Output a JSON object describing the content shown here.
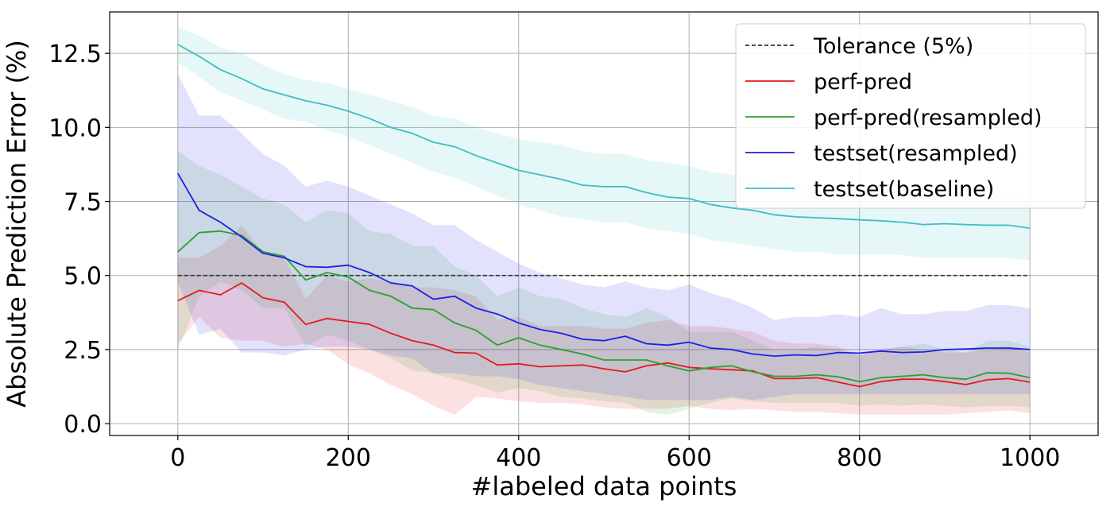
{
  "chart_data": {
    "type": "line",
    "title": "",
    "xlabel": "#labeled data points",
    "ylabel": "Absolute Prediction Error (%)",
    "xlim": [
      -80,
      1080
    ],
    "ylim": [
      -0.4,
      13.9
    ],
    "xticks": [
      0,
      200,
      400,
      600,
      800,
      1000
    ],
    "xtick_labels": [
      "0",
      "200",
      "400",
      "600",
      "800",
      "1000"
    ],
    "yticks": [
      0.0,
      2.5,
      5.0,
      7.5,
      10.0,
      12.5
    ],
    "ytick_labels": [
      "0.0",
      "2.5",
      "5.0",
      "7.5",
      "10.0",
      "12.5"
    ],
    "grid": true,
    "legend_position": "top-right",
    "x": [
      0,
      25,
      50,
      75,
      100,
      125,
      150,
      175,
      200,
      225,
      250,
      275,
      300,
      325,
      350,
      375,
      400,
      425,
      450,
      475,
      500,
      525,
      550,
      575,
      600,
      625,
      650,
      675,
      700,
      725,
      750,
      775,
      800,
      825,
      850,
      875,
      900,
      925,
      950,
      975,
      1000
    ],
    "reference_line": {
      "name": "Tolerance (5%)",
      "value": 5.0,
      "color": "#333333"
    },
    "series": [
      {
        "name": "perf-pred",
        "color": "#e41a1c",
        "values": [
          4.15,
          4.5,
          4.35,
          4.75,
          4.25,
          4.1,
          3.35,
          3.55,
          3.45,
          3.35,
          3.05,
          2.8,
          2.65,
          2.4,
          2.38,
          1.98,
          2.02,
          1.92,
          1.95,
          1.98,
          1.85,
          1.75,
          1.95,
          2.05,
          1.9,
          1.85,
          1.82,
          1.78,
          1.52,
          1.52,
          1.55,
          1.4,
          1.25,
          1.42,
          1.5,
          1.5,
          1.42,
          1.32,
          1.48,
          1.52,
          1.4
        ],
        "lower": [
          2.7,
          3.6,
          2.9,
          2.8,
          2.8,
          2.6,
          2.7,
          2.5,
          2.0,
          1.7,
          1.3,
          1.0,
          0.6,
          0.3,
          0.9,
          0.85,
          0.75,
          0.7,
          0.7,
          0.65,
          0.55,
          0.5,
          0.5,
          0.5,
          0.6,
          0.5,
          0.45,
          0.5,
          0.45,
          0.4,
          0.4,
          0.35,
          0.3,
          0.3,
          0.3,
          0.3,
          0.3,
          0.35,
          0.4,
          0.45,
          0.35
        ],
        "upper": [
          5.6,
          5.6,
          6.0,
          6.7,
          5.7,
          5.6,
          4.2,
          5.0,
          4.8,
          4.9,
          4.8,
          4.6,
          4.6,
          4.5,
          4.3,
          3.5,
          3.6,
          3.3,
          3.3,
          3.3,
          3.2,
          3.2,
          3.4,
          3.5,
          3.3,
          3.3,
          3.2,
          3.1,
          2.8,
          2.7,
          2.7,
          2.6,
          2.3,
          2.5,
          2.6,
          2.5,
          2.4,
          2.4,
          2.5,
          2.6,
          2.4
        ]
      },
      {
        "name": "perf-pred(resampled)",
        "color": "#2ca02c",
        "values": [
          5.8,
          6.45,
          6.5,
          6.35,
          5.8,
          5.65,
          4.85,
          5.1,
          4.95,
          4.5,
          4.3,
          3.9,
          3.85,
          3.4,
          3.15,
          2.65,
          2.9,
          2.65,
          2.5,
          2.35,
          2.15,
          2.15,
          2.15,
          1.95,
          1.78,
          1.9,
          1.95,
          1.75,
          1.6,
          1.6,
          1.65,
          1.58,
          1.42,
          1.55,
          1.6,
          1.65,
          1.55,
          1.5,
          1.72,
          1.7,
          1.55
        ],
        "lower": [
          2.5,
          4.3,
          4.8,
          4.5,
          3.9,
          3.9,
          2.6,
          3.0,
          2.8,
          2.5,
          2.2,
          1.8,
          1.7,
          1.5,
          1.3,
          1.05,
          1.2,
          1.1,
          0.9,
          0.85,
          0.75,
          0.7,
          0.4,
          0.3,
          0.5,
          0.7,
          0.85,
          0.75,
          0.7,
          0.7,
          0.7,
          0.7,
          0.6,
          0.65,
          0.6,
          0.65,
          0.6,
          0.55,
          0.6,
          0.6,
          0.55
        ],
        "upper": [
          9.2,
          8.7,
          8.4,
          8.0,
          7.6,
          7.4,
          6.8,
          7.2,
          7.1,
          6.5,
          6.4,
          6.0,
          6.0,
          5.3,
          5.0,
          4.3,
          4.6,
          4.3,
          4.2,
          3.9,
          3.7,
          3.6,
          3.9,
          3.6,
          3.1,
          3.1,
          3.1,
          2.8,
          2.5,
          2.5,
          2.6,
          2.5,
          2.3,
          2.5,
          2.6,
          2.7,
          2.5,
          2.4,
          2.8,
          2.8,
          2.6
        ]
      },
      {
        "name": "testset(resampled)",
        "color": "#1f1fe6",
        "values": [
          8.45,
          7.2,
          6.8,
          6.3,
          5.75,
          5.6,
          5.3,
          5.28,
          5.35,
          5.1,
          4.75,
          4.65,
          4.2,
          4.3,
          3.9,
          3.7,
          3.4,
          3.18,
          3.05,
          2.85,
          2.8,
          2.95,
          2.7,
          2.65,
          2.75,
          2.55,
          2.5,
          2.35,
          2.28,
          2.32,
          2.3,
          2.4,
          2.38,
          2.45,
          2.4,
          2.42,
          2.5,
          2.52,
          2.55,
          2.55,
          2.5
        ],
        "lower": [
          4.8,
          3.0,
          3.2,
          2.4,
          2.4,
          2.3,
          2.5,
          2.6,
          2.6,
          2.5,
          2.3,
          2.2,
          1.7,
          1.7,
          1.6,
          1.6,
          1.5,
          1.3,
          1.2,
          1.1,
          1.0,
          0.9,
          0.8,
          0.8,
          0.8,
          0.8,
          0.9,
          0.8,
          0.9,
          1.0,
          1.0,
          1.0,
          1.0,
          1.0,
          1.0,
          1.0,
          1.0,
          1.0,
          1.0,
          1.0,
          1.0
        ],
        "upper": [
          11.8,
          10.4,
          10.4,
          9.8,
          9.1,
          8.7,
          8.0,
          8.2,
          8.0,
          7.7,
          7.4,
          7.1,
          6.7,
          6.7,
          6.2,
          5.8,
          5.4,
          5.1,
          4.9,
          4.7,
          4.6,
          4.8,
          4.6,
          4.5,
          4.7,
          4.4,
          4.2,
          3.9,
          3.5,
          3.6,
          3.6,
          3.7,
          3.6,
          3.9,
          3.7,
          3.7,
          3.8,
          3.8,
          4.0,
          4.0,
          3.9
        ]
      },
      {
        "name": "testset(baseline)",
        "color": "#3dbec3",
        "values": [
          12.8,
          12.4,
          11.95,
          11.65,
          11.3,
          11.1,
          10.9,
          10.75,
          10.55,
          10.3,
          10.0,
          9.8,
          9.5,
          9.35,
          9.05,
          8.8,
          8.55,
          8.4,
          8.25,
          8.05,
          8.0,
          8.0,
          7.8,
          7.65,
          7.6,
          7.4,
          7.28,
          7.2,
          7.05,
          6.98,
          6.95,
          6.92,
          6.88,
          6.85,
          6.8,
          6.72,
          6.75,
          6.72,
          6.7,
          6.7,
          6.6
        ],
        "lower": [
          12.2,
          11.7,
          11.2,
          10.9,
          10.6,
          10.3,
          10.2,
          9.9,
          9.7,
          9.4,
          9.1,
          8.8,
          8.5,
          8.3,
          8.0,
          7.7,
          7.4,
          7.2,
          7.0,
          6.9,
          6.8,
          6.8,
          6.6,
          6.5,
          6.4,
          6.2,
          6.1,
          6.0,
          5.9,
          5.8,
          5.8,
          5.7,
          5.7,
          5.7,
          5.7,
          5.6,
          5.6,
          5.6,
          5.6,
          5.6,
          5.5
        ],
        "upper": [
          13.4,
          13.1,
          12.7,
          12.5,
          12.1,
          11.8,
          11.6,
          11.5,
          11.3,
          11.1,
          10.9,
          10.7,
          10.4,
          10.3,
          10.0,
          9.8,
          9.6,
          9.5,
          9.4,
          9.2,
          9.1,
          9.1,
          8.9,
          8.8,
          8.7,
          8.5,
          8.4,
          8.3,
          8.2,
          8.1,
          8.1,
          8.0,
          8.0,
          7.9,
          7.9,
          7.8,
          7.8,
          7.8,
          7.8,
          7.8,
          7.7
        ]
      }
    ]
  }
}
